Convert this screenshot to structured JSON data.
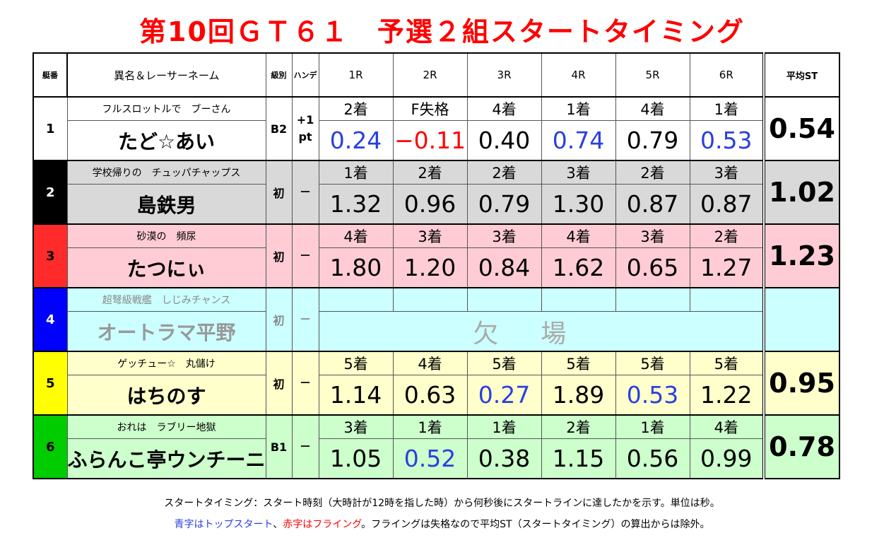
{
  "title": "第10回ＧＴ６１　予選２組スタートタイミング",
  "headers": {
    "waku": "艇番",
    "name": "異名＆レーサーネーム",
    "class": "級別",
    "handicap": "ハンデ",
    "races": [
      "1R",
      "2R",
      "3R",
      "4R",
      "5R",
      "6R"
    ],
    "avg": "平均ST"
  },
  "rows": [
    {
      "num": "1",
      "alias": "フルスロットルで　ブーさん",
      "name": "たど☆あい",
      "class": "B2",
      "handicap": "+1 pt",
      "positions": [
        "2着",
        "F失格",
        "4着",
        "1着",
        "4着",
        "1着"
      ],
      "times": [
        "0.24",
        "−0.11",
        "0.40",
        "0.74",
        "0.79",
        "0.53"
      ],
      "time_colors": [
        "blue",
        "red",
        "black",
        "blue",
        "black",
        "blue"
      ],
      "avg": "0.54",
      "num_bg": "#ffffff",
      "num_fg": "#000000",
      "row_bg": "#ffffff"
    },
    {
      "num": "2",
      "alias": "学校帰りの　チュッパチャップス",
      "name": "島鉄男",
      "class": "初",
      "handicap": "－",
      "positions": [
        "1着",
        "2着",
        "2着",
        "3着",
        "2着",
        "3着"
      ],
      "times": [
        "1.32",
        "0.96",
        "0.79",
        "1.30",
        "0.87",
        "0.87"
      ],
      "time_colors": [
        "black",
        "black",
        "black",
        "black",
        "black",
        "black"
      ],
      "avg": "1.02",
      "num_bg": "#000000",
      "num_fg": "#ffffff",
      "row_bg": "#d9d9d9"
    },
    {
      "num": "3",
      "alias": "砂漠の　頻尿",
      "name": "たつにぃ",
      "class": "初",
      "handicap": "－",
      "positions": [
        "4着",
        "3着",
        "3着",
        "4着",
        "3着",
        "2着"
      ],
      "times": [
        "1.80",
        "1.20",
        "0.84",
        "1.62",
        "0.65",
        "1.27"
      ],
      "time_colors": [
        "black",
        "black",
        "black",
        "black",
        "black",
        "black"
      ],
      "avg": "1.23",
      "num_bg": "#ff2a2a",
      "num_fg": "#000000",
      "row_bg": "#ffccd5"
    },
    {
      "num": "4",
      "alias": "超弩級戦艦　しじみチャンス",
      "name": "オートラマ平野",
      "class": "初",
      "handicap": "－",
      "absent": "欠場",
      "avg": "",
      "num_bg": "#0000ff",
      "num_fg": "#ffffff",
      "row_bg": "#ccffff"
    },
    {
      "num": "5",
      "alias": "ゲッチュー☆　丸儲け",
      "name": "はちのす",
      "class": "初",
      "handicap": "－",
      "positions": [
        "5着",
        "4着",
        "5着",
        "5着",
        "5着",
        "5着"
      ],
      "times": [
        "1.14",
        "0.63",
        "0.27",
        "1.89",
        "0.53",
        "1.22"
      ],
      "time_colors": [
        "black",
        "black",
        "blue",
        "black",
        "blue",
        "black"
      ],
      "avg": "0.95",
      "num_bg": "#ffff00",
      "num_fg": "#000000",
      "row_bg": "#ffffcc"
    },
    {
      "num": "6",
      "alias": "おれは　ラブリー地獄",
      "name": "ふらんこ亭ウンチーニ",
      "class": "B1",
      "handicap": "－",
      "positions": [
        "3着",
        "1着",
        "1着",
        "2着",
        "1着",
        "4着"
      ],
      "times": [
        "1.05",
        "0.52",
        "0.38",
        "1.15",
        "0.56",
        "0.99"
      ],
      "time_colors": [
        "black",
        "blue",
        "black",
        "black",
        "black",
        "black"
      ],
      "avg": "0.78",
      "num_bg": "#00cc00",
      "num_fg": "#000000",
      "row_bg": "#ccffcc"
    }
  ],
  "footer": {
    "line1": "スタートタイミング：スタート時刻（大時計が12時を指した時）から何秒後にスタートラインに達したかを示す。単位は秒。",
    "blue_note": "青字はトップスタート",
    "sep": "、",
    "red_note": "赤字はフライング",
    "rest": "。フライングは失格なので平均ST（スタートタイミング）の算出からは除外。"
  }
}
